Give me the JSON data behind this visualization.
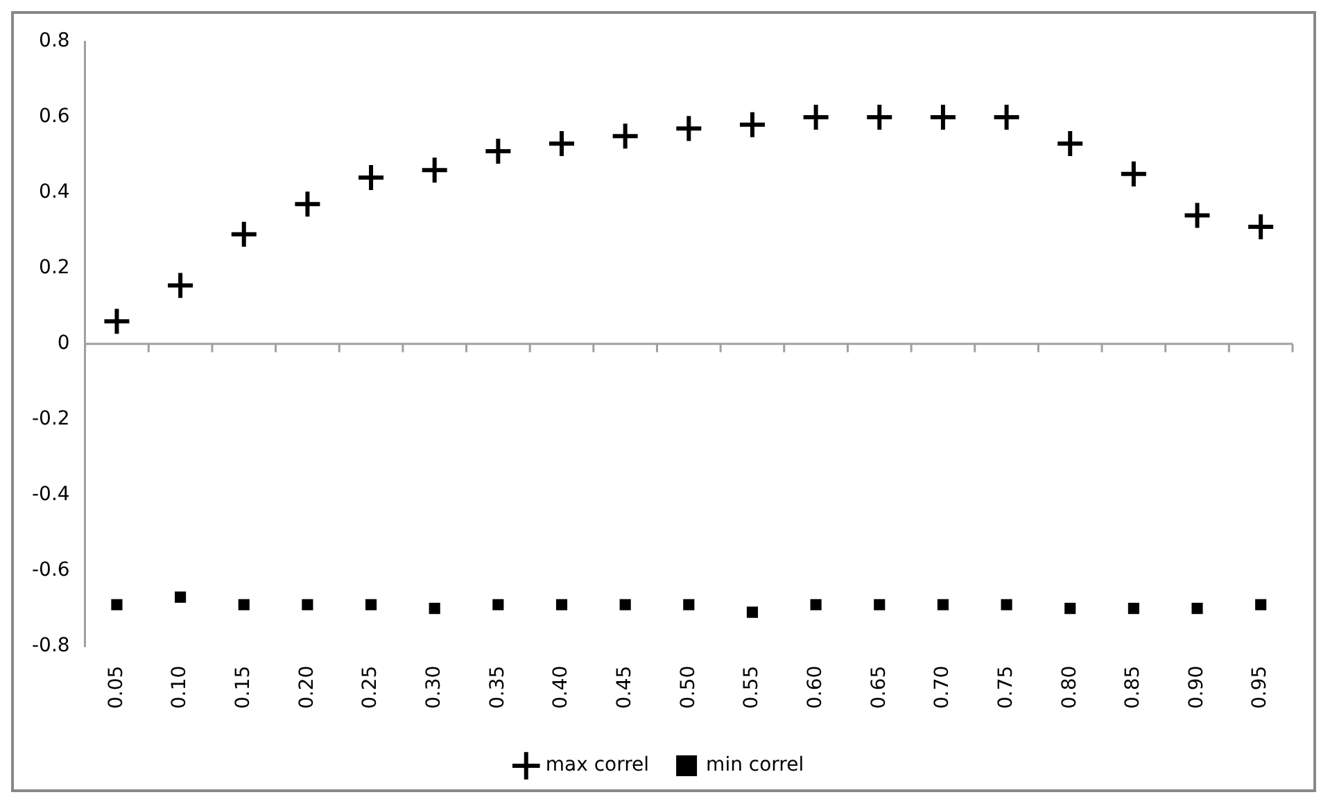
{
  "chart_data": {
    "type": "scatter",
    "categories": [
      "0.05",
      "0.10",
      "0.15",
      "0.20",
      "0.25",
      "0.30",
      "0.35",
      "0.40",
      "0.45",
      "0.50",
      "0.55",
      "0.60",
      "0.65",
      "0.70",
      "0.75",
      "0.80",
      "0.85",
      "0.90",
      "0.95"
    ],
    "series": [
      {
        "name": "max correl",
        "color": "#000000",
        "marker": "cross",
        "values": [
          0.06,
          0.155,
          0.29,
          0.37,
          0.44,
          0.46,
          0.51,
          0.53,
          0.55,
          0.57,
          0.58,
          0.6,
          0.6,
          0.6,
          0.6,
          0.53,
          0.45,
          0.34,
          0.31
        ]
      },
      {
        "name": "min correl",
        "color": "#000000",
        "marker": "square",
        "values": [
          -0.69,
          -0.67,
          -0.69,
          -0.69,
          -0.69,
          -0.7,
          -0.69,
          -0.69,
          -0.69,
          -0.69,
          -0.71,
          -0.69,
          -0.69,
          -0.69,
          -0.69,
          -0.7,
          -0.7,
          -0.7,
          -0.69
        ]
      }
    ],
    "ylim": [
      -0.8,
      0.8
    ],
    "yticks": [
      -0.8,
      -0.6,
      -0.4,
      -0.2,
      0,
      0.2,
      0.4,
      0.6,
      0.8
    ],
    "grid": false,
    "legend": "bottom",
    "ref_lines": [
      {
        "axis": "y",
        "value": 0,
        "color": "#a0a0a0"
      }
    ]
  }
}
